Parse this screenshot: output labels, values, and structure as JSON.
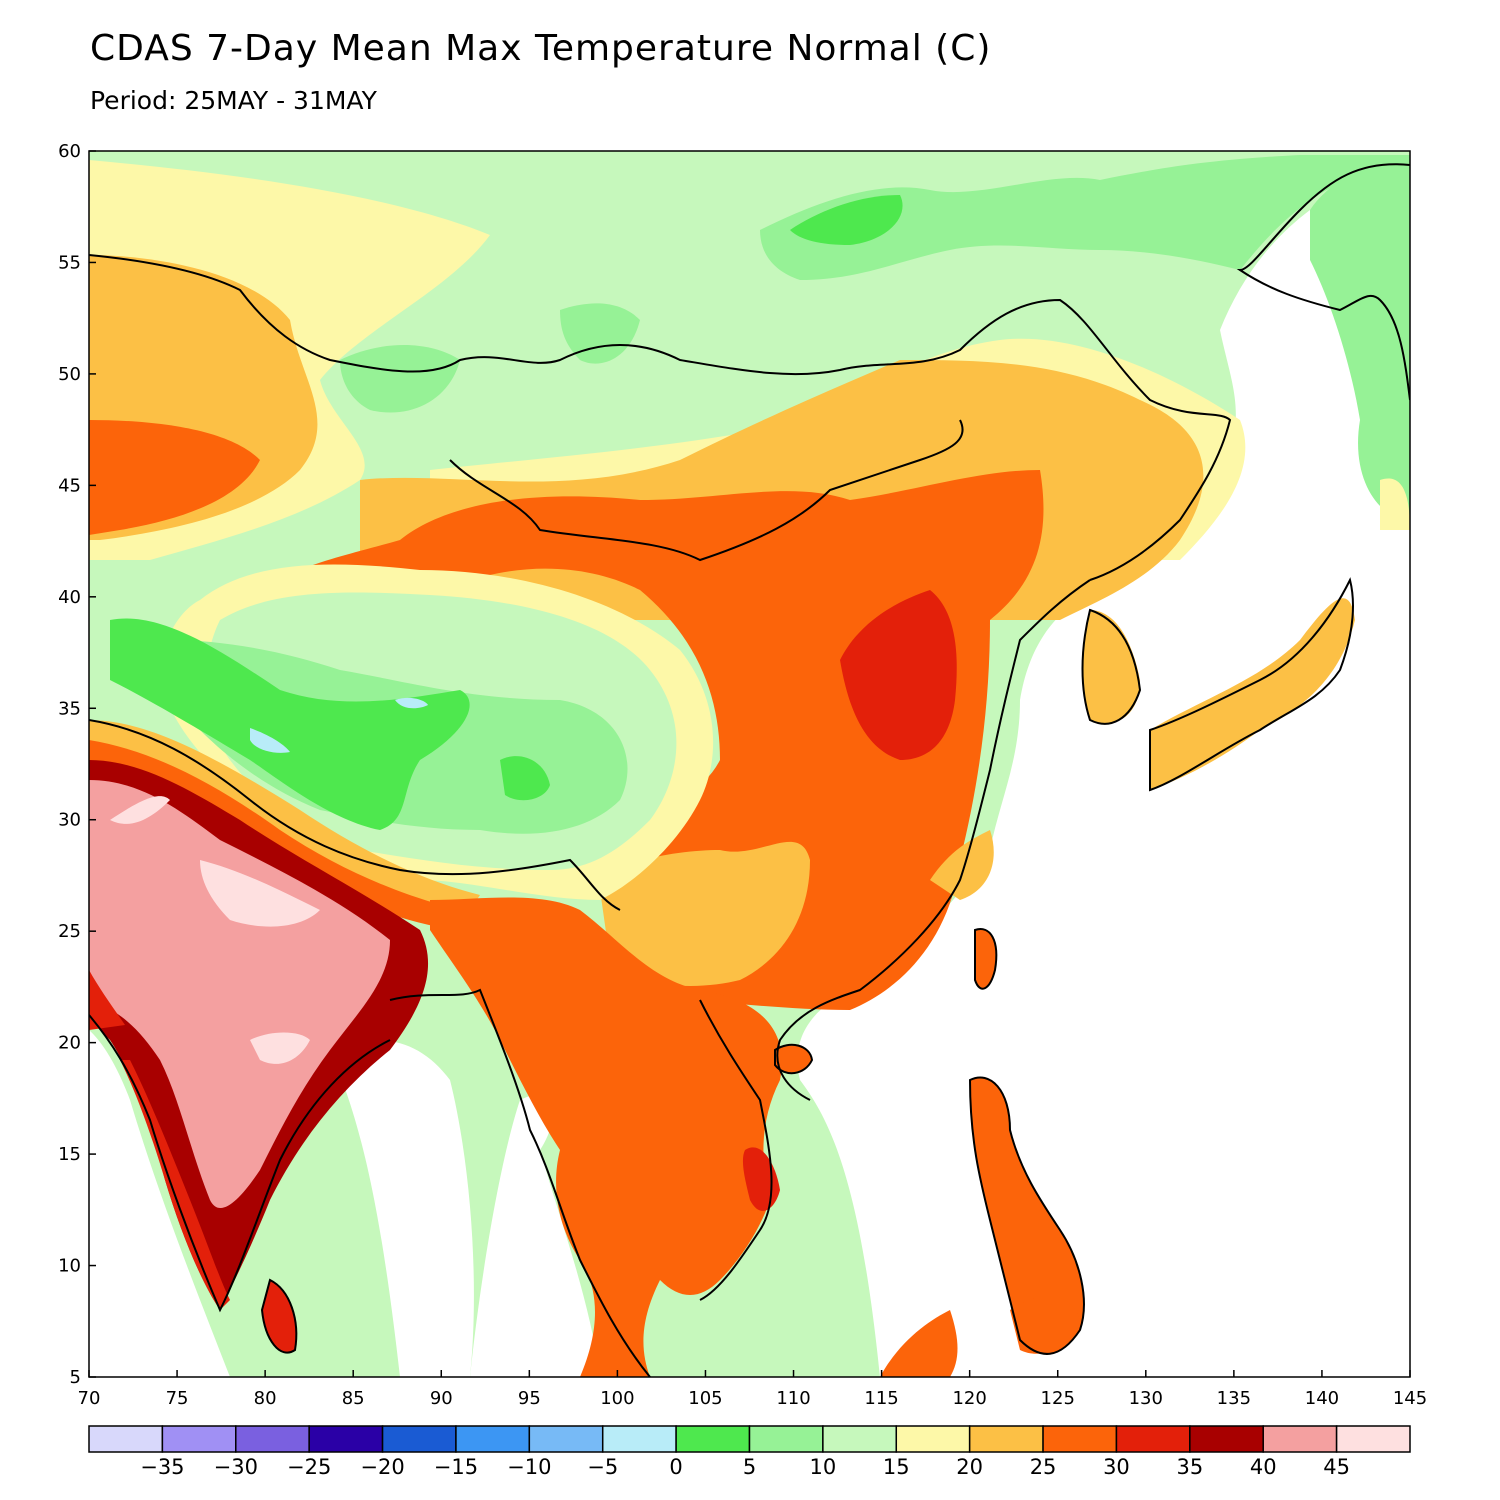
{
  "title": "CDAS 7-Day Mean Max Temperature Normal (C)",
  "subtitle": "Period: 25MAY - 31MAY",
  "map": {
    "lon_range": [
      70,
      145
    ],
    "lat_range": [
      5,
      60
    ],
    "lon_ticks": [
      "70",
      "75",
      "80",
      "85",
      "90",
      "95",
      "100",
      "105",
      "110",
      "115",
      "120",
      "125",
      "130",
      "135",
      "140",
      "145"
    ],
    "lat_ticks": [
      "60",
      "55",
      "50",
      "45",
      "40",
      "35",
      "30",
      "25",
      "20",
      "15",
      "10",
      "5"
    ]
  },
  "colorbar": {
    "colors": [
      "#d8d8fb",
      "#a090f4",
      "#7a60e0",
      "#2a00a6",
      "#1a5bd3",
      "#3c96f3",
      "#77baf6",
      "#b8ecf8",
      "#4ee84e",
      "#96f296",
      "#c6f8bc",
      "#fdf8a8",
      "#fcc045",
      "#fc640a",
      "#e3200a",
      "#a80000",
      "#f4a0a0",
      "#fee0e0"
    ],
    "labels": [
      "-35",
      "-30",
      "-25",
      "-20",
      "-15",
      "-10",
      "-5",
      "0",
      "5",
      "10",
      "15",
      "20",
      "25",
      "30",
      "35",
      "40",
      "45"
    ]
  }
}
